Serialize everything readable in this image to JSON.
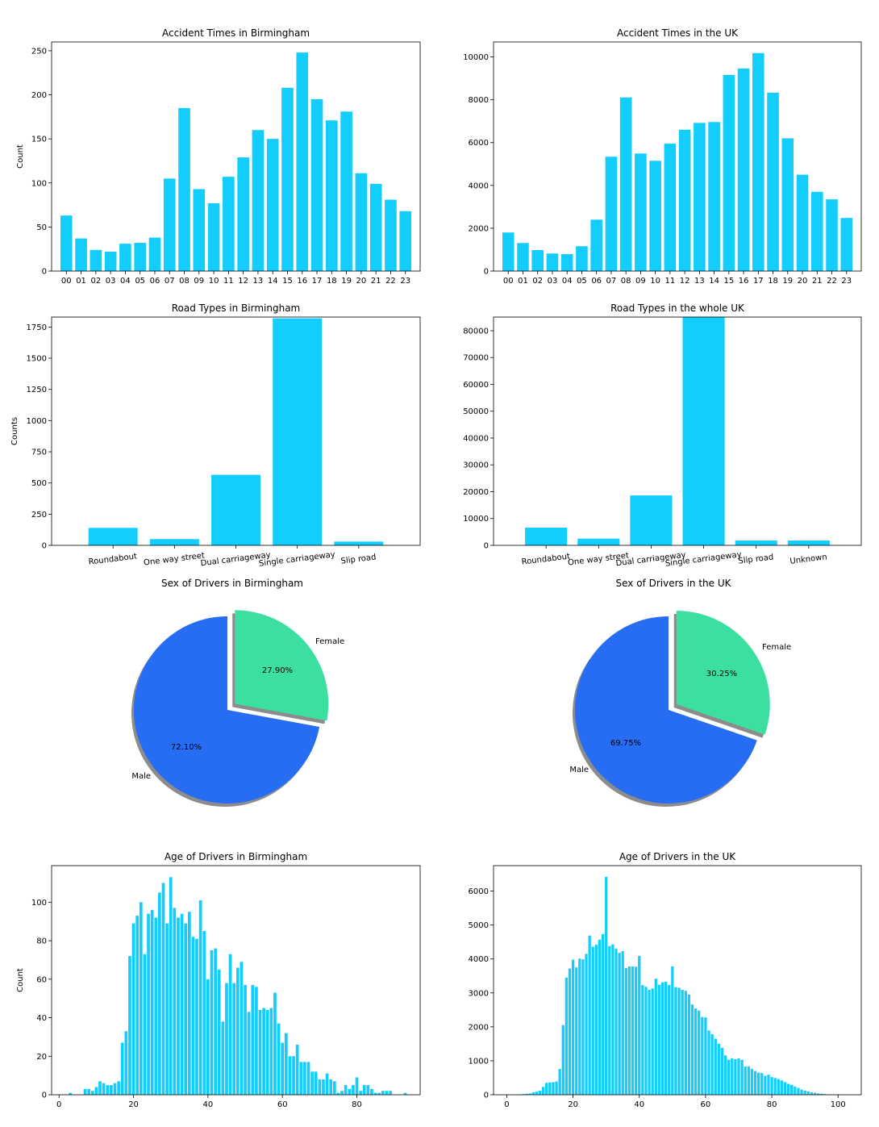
{
  "colors": {
    "bar": "#13cdfc",
    "male": "#276df3",
    "female": "#3be0a0",
    "shadow": "#8c8c8c"
  },
  "chart_data": [
    {
      "type": "bar",
      "title": "Accident Times in Birmingham",
      "ylabel": "Count",
      "categories": [
        "00",
        "01",
        "02",
        "03",
        "04",
        "05",
        "06",
        "07",
        "08",
        "09",
        "10",
        "11",
        "12",
        "13",
        "14",
        "15",
        "16",
        "17",
        "18",
        "19",
        "20",
        "21",
        "22",
        "23"
      ],
      "values": [
        63,
        37,
        24,
        22,
        31,
        32,
        38,
        105,
        185,
        93,
        77,
        107,
        129,
        160,
        150,
        208,
        248,
        195,
        171,
        181,
        111,
        99,
        81,
        68
      ],
      "ylim": [
        0,
        260
      ],
      "yticks": [
        0,
        50,
        100,
        150,
        200,
        250
      ]
    },
    {
      "type": "bar",
      "title": "Accident Times in the UK",
      "categories": [
        "00",
        "01",
        "02",
        "03",
        "04",
        "05",
        "06",
        "07",
        "08",
        "09",
        "10",
        "11",
        "12",
        "13",
        "14",
        "15",
        "16",
        "17",
        "18",
        "19",
        "20",
        "21",
        "22",
        "23"
      ],
      "values": [
        1800,
        1310,
        980,
        820,
        790,
        1160,
        2400,
        5340,
        8110,
        5490,
        5150,
        5950,
        6600,
        6920,
        6960,
        9160,
        9460,
        10180,
        8330,
        6200,
        4500,
        3700,
        3350,
        2480
      ],
      "ylim": [
        0,
        10700
      ],
      "yticks": [
        0,
        2000,
        4000,
        6000,
        8000,
        10000
      ]
    },
    {
      "type": "bar",
      "title": "Road Types in Birmingham",
      "ylabel": "Counts",
      "categories": [
        "Roundabout",
        "One way street",
        "Dual carriageway",
        "Single carriageway",
        "Slip road"
      ],
      "values": [
        140,
        50,
        565,
        1820,
        30
      ],
      "ylim": [
        0,
        1830
      ],
      "yticks": [
        0,
        250,
        500,
        750,
        1000,
        1250,
        1500,
        1750
      ]
    },
    {
      "type": "bar",
      "title": "Road Types in the whole UK",
      "categories": [
        "Roundabout",
        "One way street",
        "Dual carriageway",
        "Single carriageway",
        "Slip road",
        "Unknown"
      ],
      "values": [
        6600,
        2500,
        18600,
        85100,
        1800,
        1800
      ],
      "ylim": [
        0,
        85100
      ],
      "yticks": [
        0,
        10000,
        20000,
        30000,
        40000,
        50000,
        60000,
        70000,
        80000
      ]
    },
    {
      "type": "pie",
      "title": "Sex of Drivers in Birmingham",
      "labels": [
        "Male",
        "Female"
      ],
      "values": [
        72.1,
        27.9
      ],
      "pct_labels": [
        "72.10%",
        "27.90%"
      ]
    },
    {
      "type": "pie",
      "title": "Sex of Drivers in the UK",
      "labels": [
        "Male",
        "Female"
      ],
      "values": [
        69.75,
        30.25
      ],
      "pct_labels": [
        "69.75%",
        "30.25%"
      ]
    },
    {
      "type": "bar",
      "title": "Age of Drivers in Birmingham",
      "ylabel": "Count",
      "x": [
        3,
        7,
        8,
        9,
        10,
        11,
        12,
        13,
        14,
        15,
        16,
        17,
        18,
        19,
        20,
        21,
        22,
        23,
        24,
        25,
        26,
        27,
        28,
        29,
        30,
        31,
        32,
        33,
        34,
        35,
        36,
        37,
        38,
        39,
        40,
        41,
        42,
        43,
        44,
        45,
        46,
        47,
        48,
        49,
        50,
        51,
        52,
        53,
        54,
        55,
        56,
        57,
        58,
        59,
        60,
        61,
        62,
        63,
        64,
        65,
        66,
        67,
        68,
        69,
        70,
        71,
        72,
        73,
        74,
        75,
        76,
        77,
        78,
        79,
        80,
        81,
        82,
        83,
        84,
        85,
        86,
        87,
        88,
        89,
        93
      ],
      "values": [
        1,
        3,
        3,
        2,
        4,
        7,
        6,
        5,
        5,
        6,
        7,
        27,
        33,
        72,
        89,
        93,
        100,
        73,
        94,
        96,
        92,
        105,
        110,
        89,
        113,
        97,
        92,
        94,
        89,
        95,
        82,
        81,
        101,
        85,
        60,
        75,
        76,
        65,
        38,
        58,
        73,
        58,
        66,
        69,
        57,
        43,
        57,
        56,
        44,
        45,
        44,
        45,
        53,
        37,
        27,
        32,
        20,
        20,
        26,
        17,
        17,
        17,
        12,
        12,
        8,
        8,
        11,
        8,
        7,
        1,
        2,
        5,
        3,
        5,
        9,
        2,
        5,
        5,
        3,
        1,
        1,
        2,
        2,
        2,
        1
      ],
      "ylim": [
        0,
        119
      ],
      "xlim": [
        -2,
        97
      ],
      "xticks": [
        0,
        20,
        40,
        60,
        80
      ],
      "yticks": [
        0,
        20,
        40,
        60,
        80,
        100
      ]
    },
    {
      "type": "bar",
      "title": "Age of Drivers in the UK",
      "x": [
        4,
        5,
        6,
        7,
        8,
        9,
        10,
        11,
        12,
        13,
        14,
        15,
        16,
        17,
        18,
        19,
        20,
        21,
        22,
        23,
        24,
        25,
        26,
        27,
        28,
        29,
        30,
        31,
        32,
        33,
        34,
        35,
        36,
        37,
        38,
        39,
        40,
        41,
        42,
        43,
        44,
        45,
        46,
        47,
        48,
        49,
        50,
        51,
        52,
        53,
        54,
        55,
        56,
        57,
        58,
        59,
        60,
        61,
        62,
        63,
        64,
        65,
        66,
        67,
        68,
        69,
        70,
        71,
        72,
        73,
        74,
        75,
        76,
        77,
        78,
        79,
        80,
        81,
        82,
        83,
        84,
        85,
        86,
        87,
        88,
        89,
        90,
        91,
        92,
        93,
        94,
        95,
        96,
        97,
        98,
        99,
        100,
        101
      ],
      "values": [
        10,
        20,
        30,
        40,
        70,
        90,
        120,
        230,
        350,
        360,
        370,
        390,
        760,
        2050,
        3450,
        3720,
        3980,
        3750,
        4010,
        3990,
        4150,
        4690,
        4360,
        4420,
        4570,
        4730,
        6420,
        4380,
        4430,
        4300,
        4180,
        4230,
        3730,
        3780,
        3780,
        3770,
        4090,
        3230,
        3180,
        3090,
        3130,
        3420,
        3240,
        3310,
        3330,
        3230,
        3780,
        3170,
        3150,
        3090,
        3060,
        2950,
        2660,
        2540,
        2480,
        2290,
        2280,
        1890,
        1780,
        1650,
        1500,
        1380,
        1160,
        1030,
        1070,
        1050,
        1070,
        1030,
        830,
        840,
        760,
        700,
        650,
        640,
        560,
        590,
        520,
        490,
        460,
        420,
        370,
        320,
        290,
        240,
        200,
        150,
        120,
        100,
        70,
        60,
        40,
        30,
        20,
        10,
        10,
        5,
        3,
        2
      ],
      "ylim": [
        0,
        6750
      ],
      "xlim": [
        -4,
        107
      ],
      "xticks": [
        0,
        20,
        40,
        60,
        80,
        100
      ],
      "yticks": [
        0,
        1000,
        2000,
        3000,
        4000,
        5000,
        6000
      ]
    }
  ]
}
